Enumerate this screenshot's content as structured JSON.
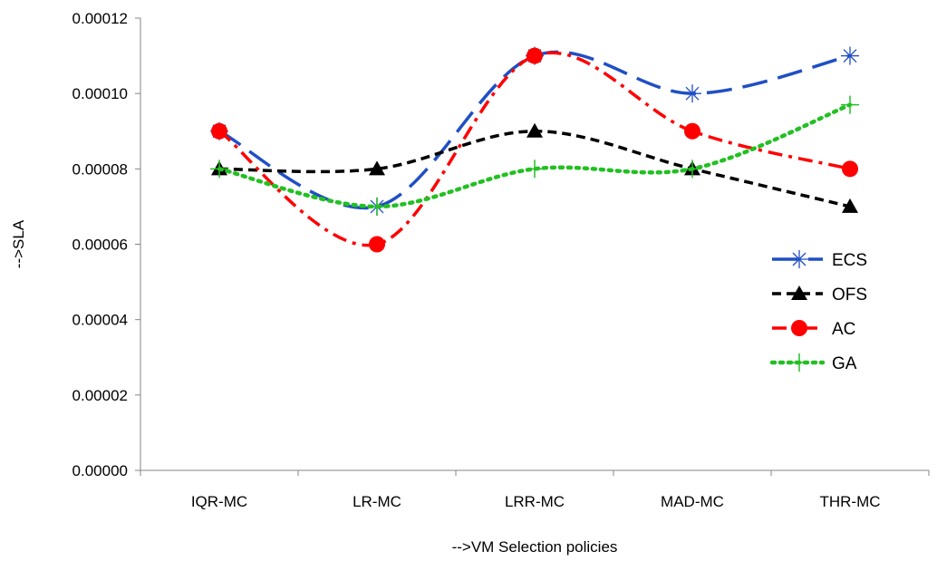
{
  "chart_data": {
    "type": "line",
    "categories": [
      "IQR-MC",
      "LR-MC",
      "LRR-MC",
      "MAD-MC",
      "THR-MC"
    ],
    "xlabel": "-->VM Selection policies",
    "ylabel": "-->SLA",
    "ylim": [
      0,
      0.00012
    ],
    "yticks": [
      "0.00000",
      "0.00002",
      "0.00004",
      "0.00006",
      "0.00008",
      "0.00010",
      "0.00012"
    ],
    "grid": false,
    "legend_position": "right",
    "smoothed": true,
    "series": [
      {
        "name": "ECS",
        "values": [
          9e-05,
          7e-05,
          0.00011,
          0.0001,
          0.00011
        ],
        "color": "#1f4fc4",
        "dash": "long-dash",
        "marker": "asterisk"
      },
      {
        "name": "OFS",
        "values": [
          8e-05,
          8e-05,
          9e-05,
          8e-05,
          7e-05
        ],
        "color": "#000000",
        "dash": "short-dash",
        "marker": "triangle"
      },
      {
        "name": "AC",
        "values": [
          9e-05,
          6e-05,
          0.00011,
          9e-05,
          8e-05
        ],
        "color": "#ff0000",
        "dash": "dash-dot",
        "marker": "circle"
      },
      {
        "name": "GA",
        "values": [
          8e-05,
          7e-05,
          8e-05,
          8e-05,
          9.7e-05
        ],
        "color": "#22c022",
        "dash": "dotted",
        "marker": "plus"
      }
    ]
  }
}
